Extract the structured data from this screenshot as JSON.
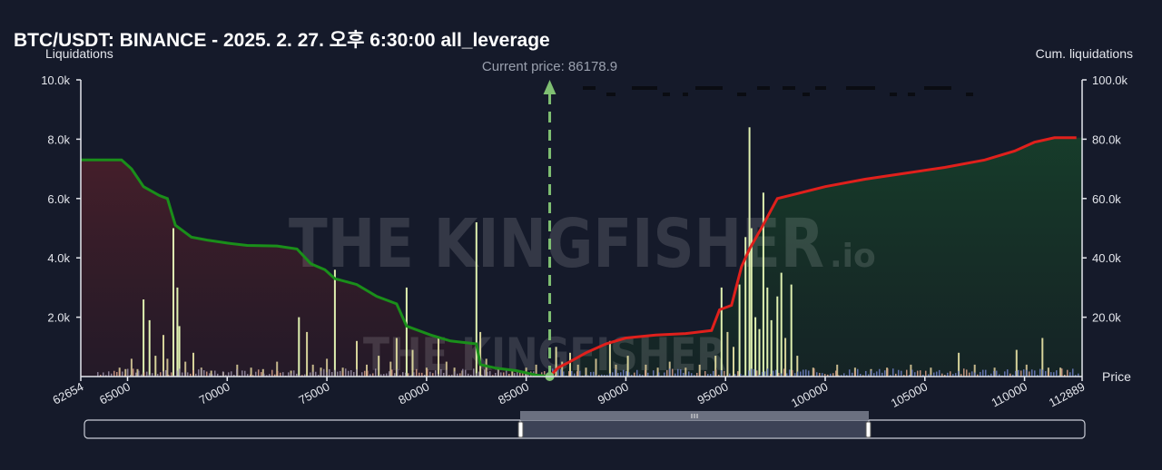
{
  "title": "BTC/USDT: BINANCE - 2025. 2. 27. 오후 6:30:00 all_leverage",
  "watermark": {
    "main": "THE KINGFISHER",
    "suffix": ".io"
  },
  "colors": {
    "background": "#151a2a",
    "cum_short_line": "#e0201c",
    "cum_long_line": "#1a8f1a",
    "short_fill": "#173225",
    "long_fill": "#3a1d2a",
    "price_marker": "#7fbf72",
    "bar_high": "#dff0b0",
    "bar_low": "#7f8fd0"
  },
  "chart_data": {
    "type": "bar",
    "title": "BTC/USDT: BINANCE - 2025. 2. 27. 오후 6:30:00 all_leverage",
    "ylabel": "Liquidations",
    "y2label": "Cum. liquidations",
    "xlabel": "Price",
    "xlim": [
      62654,
      112889
    ],
    "ylim": [
      0,
      10000
    ],
    "y2lim": [
      0,
      100000
    ],
    "x_range_labels": [
      "62654",
      "112889"
    ],
    "x_ticks": [
      "65000",
      "70000",
      "75000",
      "80000",
      "85000",
      "90000",
      "95000",
      "100000",
      "105000",
      "110000"
    ],
    "x_tick_values": [
      65000,
      70000,
      75000,
      80000,
      85000,
      90000,
      95000,
      100000,
      105000,
      110000
    ],
    "y_ticks": [
      "2.0k",
      "4.0k",
      "6.0k",
      "8.0k",
      "10.0k"
    ],
    "y_tick_values": [
      2000,
      4000,
      6000,
      8000,
      10000
    ],
    "y2_ticks": [
      "20.0k",
      "40.0k",
      "60.0k",
      "80.0k",
      "100.0k"
    ],
    "y2_tick_values": [
      20000,
      40000,
      60000,
      80000,
      100000
    ],
    "current_price": 86178.9,
    "current_price_label": "Current price: 86178.9",
    "grid": false,
    "bars": [
      {
        "x": 64600,
        "y": 300
      },
      {
        "x": 64900,
        "y": 250
      },
      {
        "x": 65200,
        "y": 600
      },
      {
        "x": 65500,
        "y": 250
      },
      {
        "x": 65800,
        "y": 2600
      },
      {
        "x": 66100,
        "y": 1900
      },
      {
        "x": 66400,
        "y": 700
      },
      {
        "x": 66800,
        "y": 1400
      },
      {
        "x": 67000,
        "y": 600
      },
      {
        "x": 67300,
        "y": 5000
      },
      {
        "x": 67500,
        "y": 3000
      },
      {
        "x": 67600,
        "y": 1700
      },
      {
        "x": 67900,
        "y": 500
      },
      {
        "x": 68300,
        "y": 800
      },
      {
        "x": 68700,
        "y": 300
      },
      {
        "x": 69200,
        "y": 200
      },
      {
        "x": 69800,
        "y": 150
      },
      {
        "x": 70500,
        "y": 400
      },
      {
        "x": 71200,
        "y": 300
      },
      {
        "x": 71800,
        "y": 250
      },
      {
        "x": 72500,
        "y": 500
      },
      {
        "x": 73200,
        "y": 200
      },
      {
        "x": 73600,
        "y": 2000
      },
      {
        "x": 74000,
        "y": 1500
      },
      {
        "x": 74300,
        "y": 400
      },
      {
        "x": 74700,
        "y": 300
      },
      {
        "x": 75000,
        "y": 600
      },
      {
        "x": 75400,
        "y": 3600
      },
      {
        "x": 75800,
        "y": 300
      },
      {
        "x": 76500,
        "y": 1200
      },
      {
        "x": 77000,
        "y": 400
      },
      {
        "x": 77600,
        "y": 700
      },
      {
        "x": 78200,
        "y": 500
      },
      {
        "x": 78500,
        "y": 1300
      },
      {
        "x": 79000,
        "y": 3000
      },
      {
        "x": 79300,
        "y": 900
      },
      {
        "x": 80000,
        "y": 300
      },
      {
        "x": 80600,
        "y": 1300
      },
      {
        "x": 81000,
        "y": 500
      },
      {
        "x": 81400,
        "y": 300
      },
      {
        "x": 81800,
        "y": 200
      },
      {
        "x": 82500,
        "y": 5200
      },
      {
        "x": 82700,
        "y": 1500
      },
      {
        "x": 83000,
        "y": 600
      },
      {
        "x": 83600,
        "y": 250
      },
      {
        "x": 84300,
        "y": 200
      },
      {
        "x": 85000,
        "y": 300
      },
      {
        "x": 85500,
        "y": 400
      },
      {
        "x": 86500,
        "y": 1000
      },
      {
        "x": 86800,
        "y": 500
      },
      {
        "x": 87200,
        "y": 800
      },
      {
        "x": 87600,
        "y": 400
      },
      {
        "x": 88000,
        "y": 300
      },
      {
        "x": 88500,
        "y": 600
      },
      {
        "x": 89200,
        "y": 1200
      },
      {
        "x": 89500,
        "y": 400
      },
      {
        "x": 90100,
        "y": 700
      },
      {
        "x": 91000,
        "y": 400
      },
      {
        "x": 91600,
        "y": 300
      },
      {
        "x": 92200,
        "y": 500
      },
      {
        "x": 93000,
        "y": 300
      },
      {
        "x": 93700,
        "y": 400
      },
      {
        "x": 94500,
        "y": 700
      },
      {
        "x": 94800,
        "y": 3000
      },
      {
        "x": 95100,
        "y": 1500
      },
      {
        "x": 95400,
        "y": 1000
      },
      {
        "x": 95700,
        "y": 3100
      },
      {
        "x": 96000,
        "y": 4700
      },
      {
        "x": 96200,
        "y": 8400
      },
      {
        "x": 96300,
        "y": 5000
      },
      {
        "x": 96500,
        "y": 2000
      },
      {
        "x": 96700,
        "y": 1600
      },
      {
        "x": 96900,
        "y": 6200
      },
      {
        "x": 97100,
        "y": 3000
      },
      {
        "x": 97300,
        "y": 1900
      },
      {
        "x": 97600,
        "y": 2700
      },
      {
        "x": 97800,
        "y": 3500
      },
      {
        "x": 98000,
        "y": 1300
      },
      {
        "x": 98300,
        "y": 3100
      },
      {
        "x": 98600,
        "y": 700
      },
      {
        "x": 99400,
        "y": 300
      },
      {
        "x": 100600,
        "y": 400
      },
      {
        "x": 101500,
        "y": 300
      },
      {
        "x": 102300,
        "y": 250
      },
      {
        "x": 103100,
        "y": 300
      },
      {
        "x": 104300,
        "y": 400
      },
      {
        "x": 105300,
        "y": 300
      },
      {
        "x": 106700,
        "y": 800
      },
      {
        "x": 107500,
        "y": 400
      },
      {
        "x": 108500,
        "y": 300
      },
      {
        "x": 109600,
        "y": 900
      },
      {
        "x": 110100,
        "y": 400
      },
      {
        "x": 110900,
        "y": 1300
      },
      {
        "x": 111200,
        "y": 300
      },
      {
        "x": 111800,
        "y": 300
      }
    ],
    "cum_long": [
      {
        "x": 62654,
        "y": 73000
      },
      {
        "x": 64700,
        "y": 73000
      },
      {
        "x": 65200,
        "y": 70000
      },
      {
        "x": 65800,
        "y": 64000
      },
      {
        "x": 66600,
        "y": 61000
      },
      {
        "x": 67000,
        "y": 60000
      },
      {
        "x": 67400,
        "y": 51000
      },
      {
        "x": 68200,
        "y": 47000
      },
      {
        "x": 69000,
        "y": 46000
      },
      {
        "x": 70000,
        "y": 45000
      },
      {
        "x": 71000,
        "y": 44200
      },
      {
        "x": 72500,
        "y": 44000
      },
      {
        "x": 73500,
        "y": 43000
      },
      {
        "x": 74200,
        "y": 38000
      },
      {
        "x": 74900,
        "y": 36000
      },
      {
        "x": 75400,
        "y": 33000
      },
      {
        "x": 76500,
        "y": 31000
      },
      {
        "x": 77500,
        "y": 27000
      },
      {
        "x": 78500,
        "y": 24500
      },
      {
        "x": 79000,
        "y": 17000
      },
      {
        "x": 80200,
        "y": 14000
      },
      {
        "x": 81200,
        "y": 12000
      },
      {
        "x": 82500,
        "y": 11000
      },
      {
        "x": 82700,
        "y": 4000
      },
      {
        "x": 83500,
        "y": 2800
      },
      {
        "x": 84500,
        "y": 2000
      },
      {
        "x": 85500,
        "y": 500
      },
      {
        "x": 86178,
        "y": 0
      }
    ],
    "cum_short": [
      {
        "x": 86178,
        "y": 0
      },
      {
        "x": 86600,
        "y": 3000
      },
      {
        "x": 87200,
        "y": 5000
      },
      {
        "x": 88000,
        "y": 8000
      },
      {
        "x": 89000,
        "y": 11000
      },
      {
        "x": 90000,
        "y": 13000
      },
      {
        "x": 91500,
        "y": 14000
      },
      {
        "x": 93000,
        "y": 14500
      },
      {
        "x": 94300,
        "y": 15500
      },
      {
        "x": 94700,
        "y": 22500
      },
      {
        "x": 95300,
        "y": 24000
      },
      {
        "x": 95800,
        "y": 37000
      },
      {
        "x": 96200,
        "y": 43000
      },
      {
        "x": 96800,
        "y": 50000
      },
      {
        "x": 97200,
        "y": 55000
      },
      {
        "x": 97600,
        "y": 60000
      },
      {
        "x": 98500,
        "y": 61500
      },
      {
        "x": 100000,
        "y": 64000
      },
      {
        "x": 102000,
        "y": 66500
      },
      {
        "x": 104000,
        "y": 68500
      },
      {
        "x": 106000,
        "y": 70500
      },
      {
        "x": 108000,
        "y": 73000
      },
      {
        "x": 109500,
        "y": 76000
      },
      {
        "x": 110500,
        "y": 79000
      },
      {
        "x": 111500,
        "y": 80500
      },
      {
        "x": 112600,
        "y": 80500
      }
    ]
  }
}
